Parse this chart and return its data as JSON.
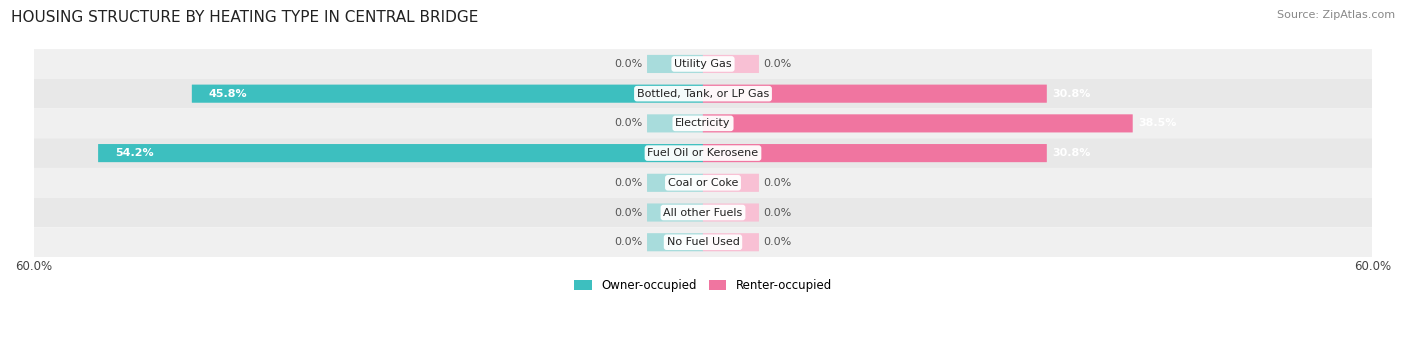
{
  "title": "HOUSING STRUCTURE BY HEATING TYPE IN CENTRAL BRIDGE",
  "source": "Source: ZipAtlas.com",
  "categories": [
    "Utility Gas",
    "Bottled, Tank, or LP Gas",
    "Electricity",
    "Fuel Oil or Kerosene",
    "Coal or Coke",
    "All other Fuels",
    "No Fuel Used"
  ],
  "owner_values": [
    0.0,
    45.8,
    0.0,
    54.2,
    0.0,
    0.0,
    0.0
  ],
  "renter_values": [
    0.0,
    30.8,
    38.5,
    30.8,
    0.0,
    0.0,
    0.0
  ],
  "owner_color": "#3dbfbf",
  "renter_color": "#f075a0",
  "owner_color_light": "#a8dcdc",
  "renter_color_light": "#f8c0d4",
  "row_bg_color_odd": "#f0f0f0",
  "row_bg_color_even": "#e8e8e8",
  "xlim": 60.0,
  "label_owner": "Owner-occupied",
  "label_renter": "Renter-occupied",
  "title_fontsize": 11,
  "source_fontsize": 8,
  "axis_fontsize": 8.5,
  "value_fontsize": 8,
  "category_fontsize": 8,
  "stub_size": 5.0
}
